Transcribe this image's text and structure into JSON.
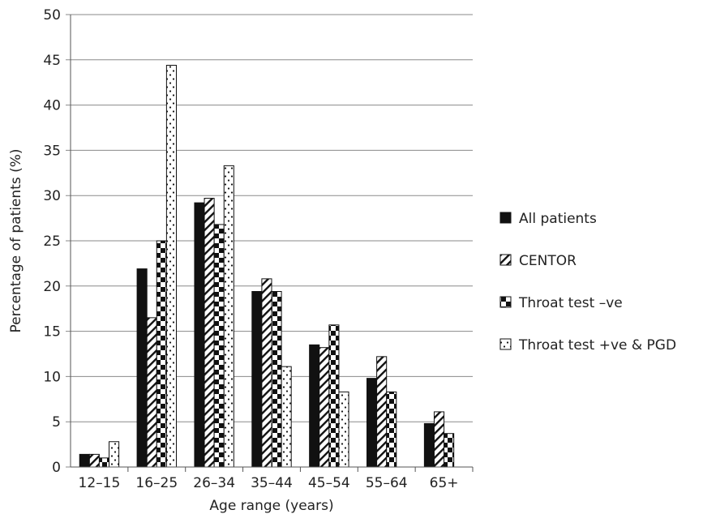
{
  "chart_data": {
    "type": "bar",
    "title": "",
    "xlabel": "Age range (years)",
    "ylabel": "Percentage of patients (%)",
    "ylim": [
      0,
      50
    ],
    "yticks": [
      0,
      5,
      10,
      15,
      20,
      25,
      30,
      35,
      40,
      45,
      50
    ],
    "grid": true,
    "legend_position": "right",
    "categories": [
      "12–15",
      "16–25",
      "26–34",
      "35–44",
      "45–54",
      "55–64",
      "65+"
    ],
    "series": [
      {
        "name": "All patients",
        "pattern": "solid",
        "color": "#111111",
        "values": [
          1.4,
          21.9,
          29.2,
          19.4,
          13.5,
          9.8,
          4.8
        ]
      },
      {
        "name": "CENTOR",
        "pattern": "diagonal",
        "color": "#111111",
        "values": [
          1.4,
          16.5,
          29.7,
          20.8,
          13.2,
          12.2,
          6.1
        ]
      },
      {
        "name": "Throat test –ve",
        "pattern": "checker",
        "color": "#111111",
        "values": [
          1.0,
          25.0,
          26.8,
          19.4,
          15.7,
          8.3,
          3.7
        ]
      },
      {
        "name": "Throat test +ve & PGD",
        "pattern": "dotted",
        "color": "#111111",
        "values": [
          2.8,
          44.4,
          33.3,
          11.1,
          8.3,
          0,
          0
        ]
      }
    ]
  }
}
